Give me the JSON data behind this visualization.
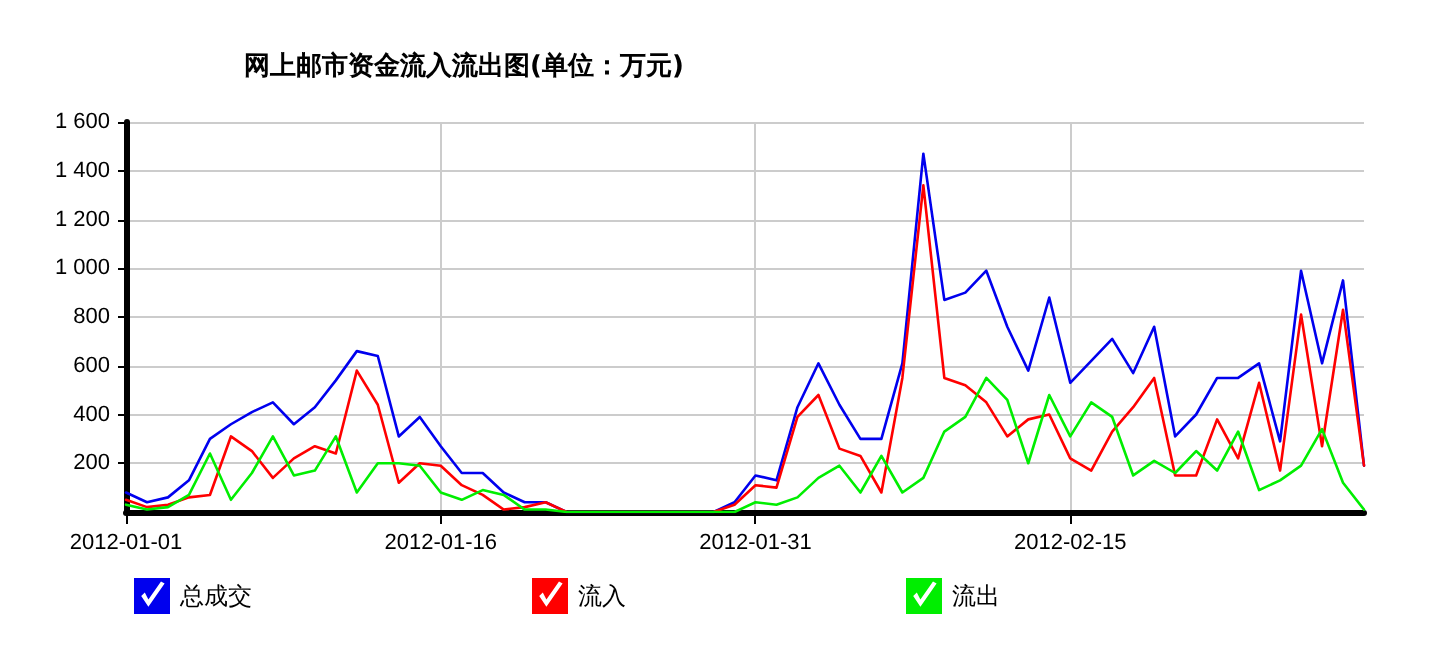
{
  "chart_data": {
    "type": "line",
    "title": "网上邮市资金流入流出图(单位：万元)",
    "x": [
      "2012-01-01",
      "2012-01-02",
      "2012-01-03",
      "2012-01-04",
      "2012-01-05",
      "2012-01-06",
      "2012-01-07",
      "2012-01-08",
      "2012-01-09",
      "2012-01-10",
      "2012-01-11",
      "2012-01-12",
      "2012-01-13",
      "2012-01-14",
      "2012-01-15",
      "2012-01-16",
      "2012-01-17",
      "2012-01-18",
      "2012-01-19",
      "2012-01-20",
      "2012-01-21",
      "2012-01-22",
      "2012-01-23",
      "2012-01-24",
      "2012-01-25",
      "2012-01-26",
      "2012-01-27",
      "2012-01-28",
      "2012-01-29",
      "2012-01-30",
      "2012-01-31",
      "2012-02-01",
      "2012-02-02",
      "2012-02-03",
      "2012-02-04",
      "2012-02-05",
      "2012-02-06",
      "2012-02-07",
      "2012-02-08",
      "2012-02-09",
      "2012-02-10",
      "2012-02-11",
      "2012-02-12",
      "2012-02-13",
      "2012-02-14",
      "2012-02-15",
      "2012-02-16",
      "2012-02-17",
      "2012-02-18",
      "2012-02-19",
      "2012-02-20",
      "2012-02-21",
      "2012-02-22",
      "2012-02-23",
      "2012-02-24",
      "2012-02-25",
      "2012-02-26",
      "2012-02-27",
      "2012-02-28",
      "2012-02-29"
    ],
    "series": [
      {
        "name": "总成交",
        "color": "#0000ee",
        "values": [
          80,
          40,
          60,
          130,
          300,
          360,
          410,
          450,
          360,
          430,
          540,
          660,
          640,
          310,
          390,
          270,
          160,
          160,
          80,
          40,
          40,
          0,
          0,
          0,
          0,
          0,
          0,
          0,
          0,
          40,
          150,
          130,
          430,
          610,
          440,
          300,
          300,
          610,
          1470,
          870,
          900,
          990,
          760,
          580,
          880,
          530,
          620,
          710,
          570,
          760,
          310,
          400,
          550,
          550,
          610,
          290,
          990,
          610,
          950,
          190
        ]
      },
      {
        "name": "流入",
        "color": "#ff0000",
        "values": [
          50,
          20,
          30,
          60,
          70,
          310,
          250,
          140,
          220,
          270,
          240,
          580,
          440,
          120,
          200,
          190,
          110,
          70,
          10,
          20,
          40,
          0,
          0,
          0,
          0,
          0,
          0,
          0,
          0,
          30,
          110,
          100,
          390,
          480,
          260,
          230,
          80,
          550,
          1340,
          550,
          520,
          450,
          310,
          380,
          400,
          220,
          170,
          330,
          430,
          550,
          150,
          150,
          380,
          220,
          530,
          170,
          810,
          270,
          830,
          190
        ]
      },
      {
        "name": "流出",
        "color": "#00ee00",
        "values": [
          30,
          10,
          20,
          70,
          240,
          50,
          160,
          310,
          150,
          170,
          310,
          80,
          200,
          200,
          190,
          80,
          50,
          90,
          70,
          10,
          10,
          0,
          0,
          0,
          0,
          0,
          0,
          0,
          0,
          0,
          40,
          30,
          60,
          140,
          190,
          80,
          230,
          80,
          140,
          330,
          390,
          550,
          460,
          200,
          480,
          310,
          450,
          390,
          150,
          210,
          160,
          250,
          170,
          330,
          90,
          130,
          190,
          340,
          120,
          10
        ]
      }
    ],
    "xlim": [
      "2012-01-01",
      "2012-02-29"
    ],
    "xticks": [
      "2012-01-01",
      "2012-01-16",
      "2012-01-31",
      "2012-02-15"
    ],
    "ylim": [
      0,
      1600
    ],
    "yticks": [
      200,
      400,
      600,
      800,
      {
        "value": 1000,
        "label": "1 000"
      },
      {
        "value": 1200,
        "label": "1 200"
      },
      {
        "value": 1400,
        "label": "1 400"
      },
      {
        "value": 1600,
        "label": "1 600"
      }
    ],
    "grid": true,
    "legend": "bottom left",
    "marker": "none",
    "line_style": "solid"
  }
}
